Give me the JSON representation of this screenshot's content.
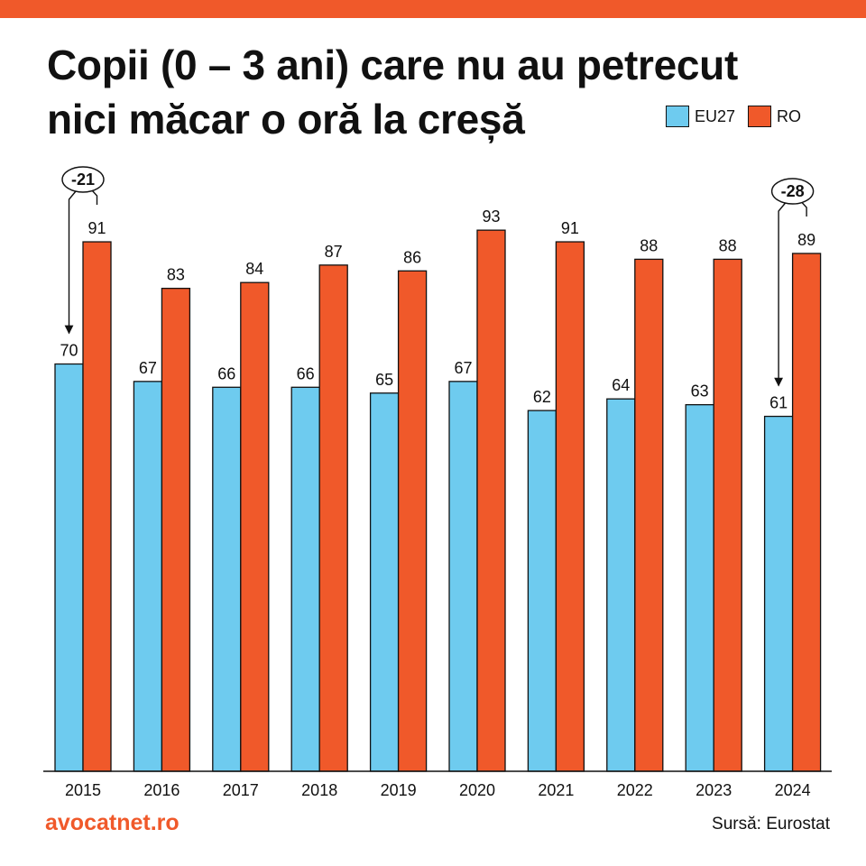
{
  "colors": {
    "accent": "#F0592A",
    "eu": "#6ECBEF",
    "ro": "#F0592A"
  },
  "title_lines": [
    "Copii (0 – 3 ani) care nu au petrecut",
    "nici măcar o oră la creșă"
  ],
  "brand": "avocatnet.ro",
  "source": "Sursă: Eurostat",
  "chart_data": {
    "type": "bar",
    "categories": [
      "2015",
      "2016",
      "2017",
      "2018",
      "2019",
      "2020",
      "2021",
      "2022",
      "2023",
      "2024"
    ],
    "series": [
      {
        "name": "EU27",
        "values": [
          70,
          67,
          66,
          66,
          65,
          67,
          62,
          64,
          63,
          61
        ]
      },
      {
        "name": "RO",
        "values": [
          91,
          83,
          84,
          87,
          86,
          93,
          91,
          88,
          88,
          89
        ]
      }
    ],
    "legend": {
      "position": "top-right",
      "items": [
        "EU27",
        "RO"
      ]
    },
    "annotations": [
      {
        "category": "2015",
        "text": "-21"
      },
      {
        "category": "2024",
        "text": "-28"
      }
    ],
    "ylim": [
      0,
      100
    ],
    "grid": false
  }
}
